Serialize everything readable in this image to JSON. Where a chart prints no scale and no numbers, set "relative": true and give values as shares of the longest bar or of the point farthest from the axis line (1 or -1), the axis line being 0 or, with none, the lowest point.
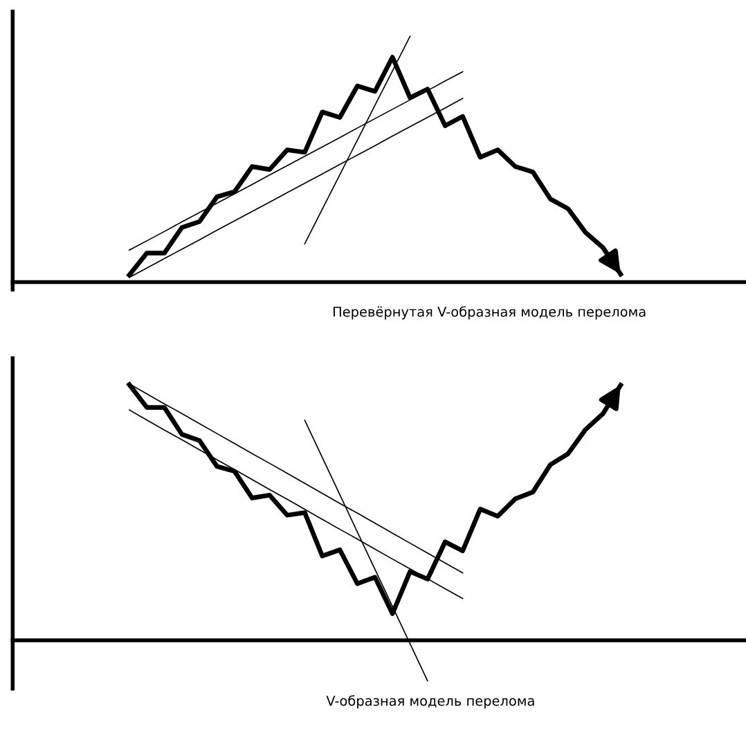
{
  "chart_data": [
    {
      "type": "line",
      "relative": true,
      "xlabel": "Перевёрнутая V-образная модель перелома",
      "categories": [
        null,
        null,
        null,
        null,
        null,
        null,
        null,
        null,
        null,
        null,
        null,
        null,
        null,
        null,
        null,
        null,
        null,
        null,
        null,
        null,
        null,
        null,
        null,
        null,
        null,
        null,
        null,
        null,
        null
      ],
      "series": [
        {
          "color": "#000000",
          "values": [
            0.029,
            0.118,
            0.118,
            0.222,
            0.246,
            0.347,
            0.368,
            0.47,
            0.458,
            0.538,
            0.528,
            0.692,
            0.67,
            0.798,
            0.776,
            0.915,
            0.75,
            0.785,
            0.636,
            0.674,
            0.508,
            0.538,
            0.47,
            0.448,
            0.338,
            0.299,
            0.202,
            0.14,
            0.032
          ]
        },
        {
          "color": "#000000",
          "values": [
            0.13,
            0.168,
            0.206,
            0.245,
            0.283,
            0.321,
            0.359,
            0.397,
            0.436,
            0.474,
            0.512,
            0.55,
            0.588,
            0.627,
            0.665,
            0.703,
            0.741,
            0.779,
            0.818,
            0.856,
            null,
            null,
            null,
            null,
            null,
            null,
            null,
            null,
            null
          ]
        },
        {
          "color": "#000000",
          "values": [
            0.019,
            0.057,
            0.096,
            0.134,
            0.172,
            0.211,
            0.249,
            0.287,
            0.325,
            0.364,
            0.402,
            0.44,
            0.479,
            0.517,
            0.555,
            0.594,
            0.632,
            0.67,
            0.708,
            0.747,
            null,
            null,
            null,
            null,
            null,
            null,
            null,
            null,
            null
          ]
        },
        {
          "color": "#000000",
          "values": [
            null,
            null,
            null,
            null,
            null,
            null,
            null,
            null,
            null,
            null,
            0.156,
            0.297,
            0.437,
            0.578,
            0.719,
            0.859,
            1.0,
            null,
            null,
            null,
            null,
            null,
            null,
            null,
            null,
            null,
            null,
            null,
            null
          ]
        }
      ]
    },
    {
      "type": "line",
      "relative": true,
      "xlabel": "V-образная модель перелома",
      "categories": [
        null,
        null,
        null,
        null,
        null,
        null,
        null,
        null,
        null,
        null,
        null,
        null,
        null,
        null,
        null,
        null,
        null,
        null,
        null,
        null,
        null,
        null,
        null,
        null,
        null,
        null,
        null,
        null,
        null
      ],
      "series": [
        {
          "color": "#000000",
          "values": [
            0.997,
            0.908,
            0.908,
            0.803,
            0.779,
            0.678,
            0.659,
            0.555,
            0.566,
            0.488,
            0.498,
            0.329,
            0.353,
            0.221,
            0.246,
            0.104,
            0.268,
            0.239,
            0.384,
            0.349,
            0.512,
            0.484,
            0.552,
            0.578,
            0.685,
            0.727,
            0.822,
            0.884,
            0.995
          ]
        },
        {
          "color": "#000000",
          "values": [
            1.0,
            0.961,
            0.922,
            0.884,
            0.845,
            0.806,
            0.767,
            0.728,
            0.69,
            0.651,
            0.612,
            0.573,
            0.534,
            0.496,
            0.457,
            0.418,
            0.379,
            0.34,
            0.302,
            0.263,
            null,
            null,
            null,
            null,
            null,
            null,
            null,
            null,
            null
          ]
        },
        {
          "color": "#000000",
          "values": [
            0.898,
            0.859,
            0.82,
            0.782,
            0.743,
            0.704,
            0.666,
            0.627,
            0.588,
            0.55,
            0.511,
            0.472,
            0.433,
            0.395,
            0.356,
            0.317,
            0.279,
            0.24,
            0.201,
            0.163,
            null,
            null,
            null,
            null,
            null,
            null,
            null,
            null,
            null
          ]
        },
        {
          "color": "#000000",
          "values": [
            null,
            null,
            null,
            null,
            null,
            null,
            null,
            null,
            null,
            null,
            0.858,
            0.713,
            0.568,
            0.422,
            0.277,
            0.132,
            -0.013,
            -0.158,
            null,
            null,
            null,
            null,
            null,
            null,
            null,
            null,
            null,
            null,
            null
          ]
        }
      ]
    }
  ]
}
